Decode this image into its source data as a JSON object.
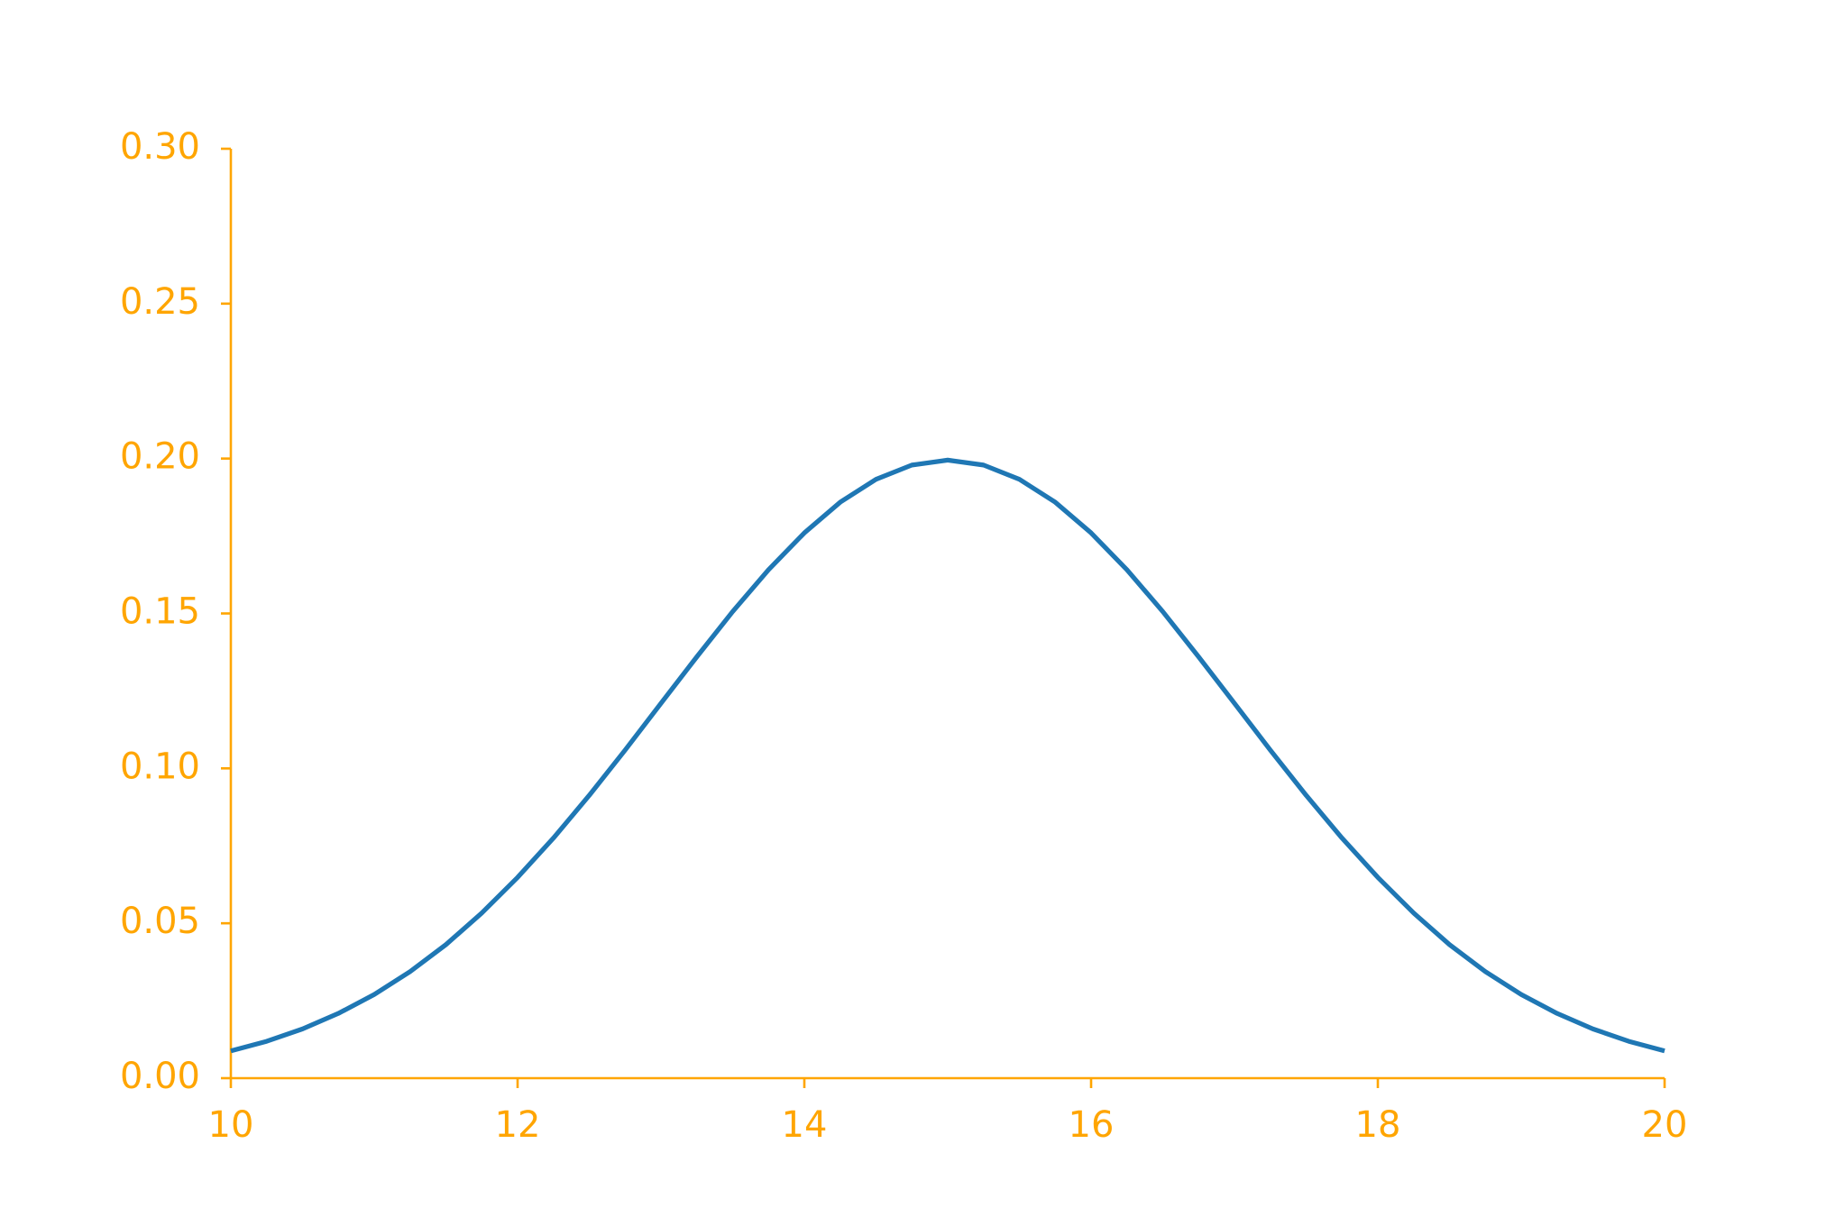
{
  "chart_data": {
    "type": "line",
    "x": [
      10,
      10.25,
      10.5,
      10.75,
      11,
      11.25,
      11.5,
      11.75,
      12,
      12.25,
      12.5,
      12.75,
      13,
      13.25,
      13.5,
      13.75,
      14,
      14.25,
      14.5,
      14.75,
      15,
      15.25,
      15.5,
      15.75,
      16,
      16.25,
      16.5,
      16.75,
      17,
      17.25,
      17.5,
      17.75,
      18,
      18.25,
      18.5,
      18.75,
      19,
      19.25,
      19.5,
      19.75,
      20
    ],
    "values": [
      0.0088,
      0.0119,
      0.0159,
      0.0209,
      0.027,
      0.0344,
      0.0431,
      0.0533,
      0.0648,
      0.0775,
      0.0913,
      0.1059,
      0.121,
      0.136,
      0.1506,
      0.1641,
      0.176,
      0.1859,
      0.1933,
      0.1979,
      0.1995,
      0.1979,
      0.1933,
      0.1859,
      0.176,
      0.1641,
      0.1506,
      0.136,
      0.121,
      0.1059,
      0.0913,
      0.0775,
      0.0648,
      0.0533,
      0.0431,
      0.0344,
      0.027,
      0.0209,
      0.0159,
      0.0119,
      0.0088
    ],
    "color": "#1f77b4",
    "axis_color": "#ffa500",
    "xlim": [
      10,
      20
    ],
    "xticks": [
      10,
      12,
      14,
      16,
      18,
      20
    ],
    "ylim": [
      0,
      0.3
    ],
    "yticks": [
      {
        "value": 0,
        "label": "0.00"
      },
      0.05,
      {
        "value": 0.1,
        "label": "0.10"
      },
      0.15,
      {
        "value": 0.2,
        "label": "0.20"
      },
      0.25,
      {
        "value": 0.3,
        "label": "0.30"
      }
    ],
    "grid": false
  }
}
